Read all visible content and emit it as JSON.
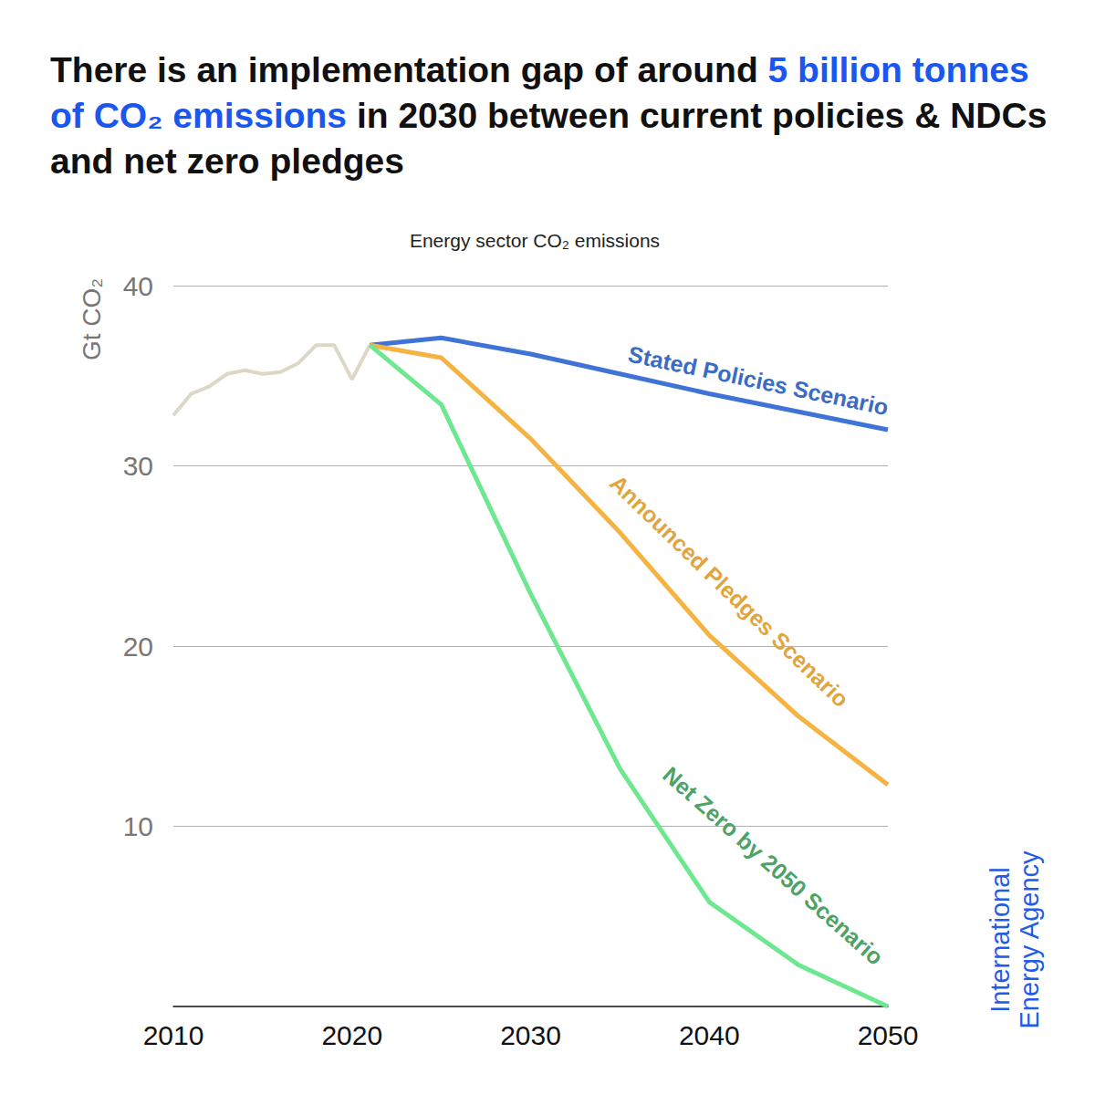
{
  "chart_data": {
    "type": "line",
    "title": "There is an implementation gap of around 5 billion tonnes of CO₂ emissions in 2030 between current policies & NDCs and net zero pledges",
    "title_highlight": "5 billion tonnes of CO₂ emissions",
    "subtitle": "Energy sector CO₂ emissions",
    "y_label": "Gt CO₂",
    "source": "International Energy Agency",
    "series": [
      {
        "color": "#dcd8c6",
        "x": [
          2010,
          2011,
          2012,
          2013,
          2014,
          2015,
          2016,
          2017,
          2018,
          2019,
          2020,
          2021
        ],
        "values": [
          32.8,
          34.0,
          34.4,
          35.1,
          35.3,
          35.1,
          35.2,
          35.7,
          36.7,
          36.7,
          34.8,
          36.7
        ]
      },
      {
        "name": "Stated Policies Scenario",
        "color": "#3f74d6",
        "x": [
          2021,
          2025,
          2030,
          2035,
          2040,
          2045,
          2050
        ],
        "values": [
          36.7,
          37.1,
          36.2,
          35.1,
          34.0,
          33.0,
          32.0
        ]
      },
      {
        "name": "Announced Pledges Scenario",
        "color": "#f5b342",
        "x": [
          2021,
          2025,
          2030,
          2035,
          2040,
          2045,
          2050
        ],
        "values": [
          36.7,
          36.0,
          31.5,
          26.3,
          20.6,
          16.1,
          12.3
        ]
      },
      {
        "name": "Net Zero by 2050 Scenario",
        "color": "#6ee890",
        "x": [
          2021,
          2025,
          2030,
          2035,
          2040,
          2045,
          2050
        ],
        "values": [
          36.7,
          33.4,
          22.9,
          13.2,
          5.8,
          2.3,
          0
        ]
      }
    ],
    "xlim": [
      2010,
      2050
    ],
    "xticks": [
      2010,
      2020,
      2030,
      2040,
      2050
    ],
    "ylim": [
      0,
      40
    ],
    "yticks": [
      10,
      20,
      30,
      40
    ],
    "grid": true
  }
}
